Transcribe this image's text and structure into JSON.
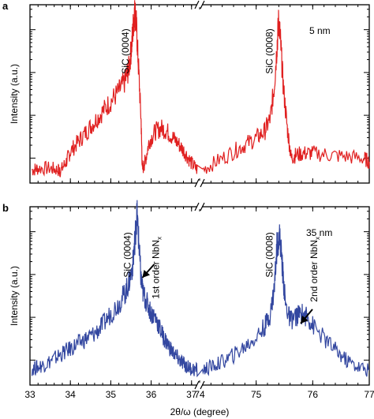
{
  "chart_data": [
    {
      "type": "line",
      "panel": "a",
      "thickness": "5 nm",
      "ylabel": "Intensity (a.u.)",
      "xlabel": "",
      "scale_y": "log",
      "color": "#e02020",
      "x_break": [
        37.0,
        74.0
      ],
      "xlim_left": [
        33,
        37.2
      ],
      "xlim_right": [
        74,
        77
      ],
      "x_ticks_show_labels": false,
      "peaks": [
        {
          "label": "SiC (0004)",
          "x": 35.6
        },
        {
          "label": "SiC (0008)",
          "x": 75.4
        }
      ],
      "series": [
        {
          "x": [
            33.05,
            33.2,
            33.5,
            33.7,
            33.75,
            33.9,
            34.0,
            34.2,
            34.4,
            34.6,
            34.8,
            35.0,
            35.2,
            35.35,
            35.45,
            35.52,
            35.57,
            35.6,
            35.63,
            35.68,
            35.75,
            35.78,
            35.85,
            35.95,
            36.1,
            36.25,
            36.4,
            36.55,
            36.7,
            36.85,
            37.0,
            37.15,
            74.05,
            74.3,
            74.6,
            74.8,
            75.0,
            75.15,
            75.25,
            75.32,
            75.37,
            75.4,
            75.43,
            75.48,
            75.55,
            75.62,
            75.7,
            75.85,
            76.0,
            76.3,
            76.6,
            76.9,
            77.0
          ],
          "y": [
            0.05,
            0.06,
            0.06,
            0.05,
            0.04,
            0.1,
            0.16,
            0.22,
            0.28,
            0.34,
            0.4,
            0.46,
            0.52,
            0.58,
            0.66,
            0.8,
            0.95,
            1.0,
            0.93,
            0.7,
            0.35,
            0.05,
            0.1,
            0.22,
            0.28,
            0.3,
            0.28,
            0.24,
            0.2,
            0.15,
            0.09,
            0.05,
            0.05,
            0.1,
            0.16,
            0.2,
            0.24,
            0.28,
            0.36,
            0.55,
            0.8,
            0.95,
            0.82,
            0.55,
            0.3,
            0.12,
            0.14,
            0.15,
            0.15,
            0.14,
            0.13,
            0.12,
            0.1
          ]
        }
      ]
    },
    {
      "type": "line",
      "panel": "b",
      "thickness": "35 nm",
      "ylabel": "Intensity (a.u.)",
      "xlabel": "2θ/ω (degree)",
      "scale_y": "log",
      "color": "#3347a0",
      "x_break": [
        37.0,
        74.0
      ],
      "xlim_left": [
        33,
        37.2
      ],
      "xlim_right": [
        74,
        77
      ],
      "x_ticks_labels": [
        "33",
        "34",
        "35",
        "36",
        "37",
        "74",
        "75",
        "76",
        "77"
      ],
      "peaks": [
        {
          "label": "SiC (0004)",
          "x": 35.65
        },
        {
          "label": "SiC (0008)",
          "x": 75.4
        }
      ],
      "annotations": [
        {
          "label": "1st order NbN",
          "subscript": "x",
          "x": 35.8
        },
        {
          "label": "2nd order NbN",
          "subscript": "x",
          "x": 75.8
        }
      ],
      "series": [
        {
          "x": [
            33.05,
            33.2,
            33.4,
            33.6,
            33.8,
            34.0,
            34.2,
            34.4,
            34.6,
            34.8,
            35.0,
            35.2,
            35.35,
            35.45,
            35.55,
            35.6,
            35.65,
            35.7,
            35.75,
            35.8,
            35.9,
            36.0,
            36.1,
            36.2,
            36.3,
            36.4,
            36.5,
            36.6,
            36.7,
            36.8,
            36.9,
            37.0,
            37.15,
            74.05,
            74.2,
            74.4,
            74.6,
            74.8,
            75.0,
            75.15,
            75.25,
            75.32,
            75.37,
            75.42,
            75.47,
            75.52,
            75.6,
            75.7,
            75.8,
            75.9,
            76.0,
            76.2,
            76.4,
            76.6,
            76.8,
            77.0
          ],
          "y": [
            0.07,
            0.08,
            0.1,
            0.13,
            0.16,
            0.19,
            0.22,
            0.25,
            0.28,
            0.33,
            0.4,
            0.46,
            0.52,
            0.58,
            0.7,
            0.85,
            1.0,
            0.8,
            0.6,
            0.52,
            0.46,
            0.4,
            0.38,
            0.32,
            0.26,
            0.22,
            0.18,
            0.15,
            0.12,
            0.1,
            0.08,
            0.07,
            0.06,
            0.06,
            0.08,
            0.11,
            0.15,
            0.2,
            0.26,
            0.32,
            0.4,
            0.55,
            0.82,
            0.86,
            0.65,
            0.45,
            0.36,
            0.38,
            0.4,
            0.38,
            0.33,
            0.25,
            0.18,
            0.12,
            0.08,
            0.06
          ]
        }
      ]
    }
  ]
}
